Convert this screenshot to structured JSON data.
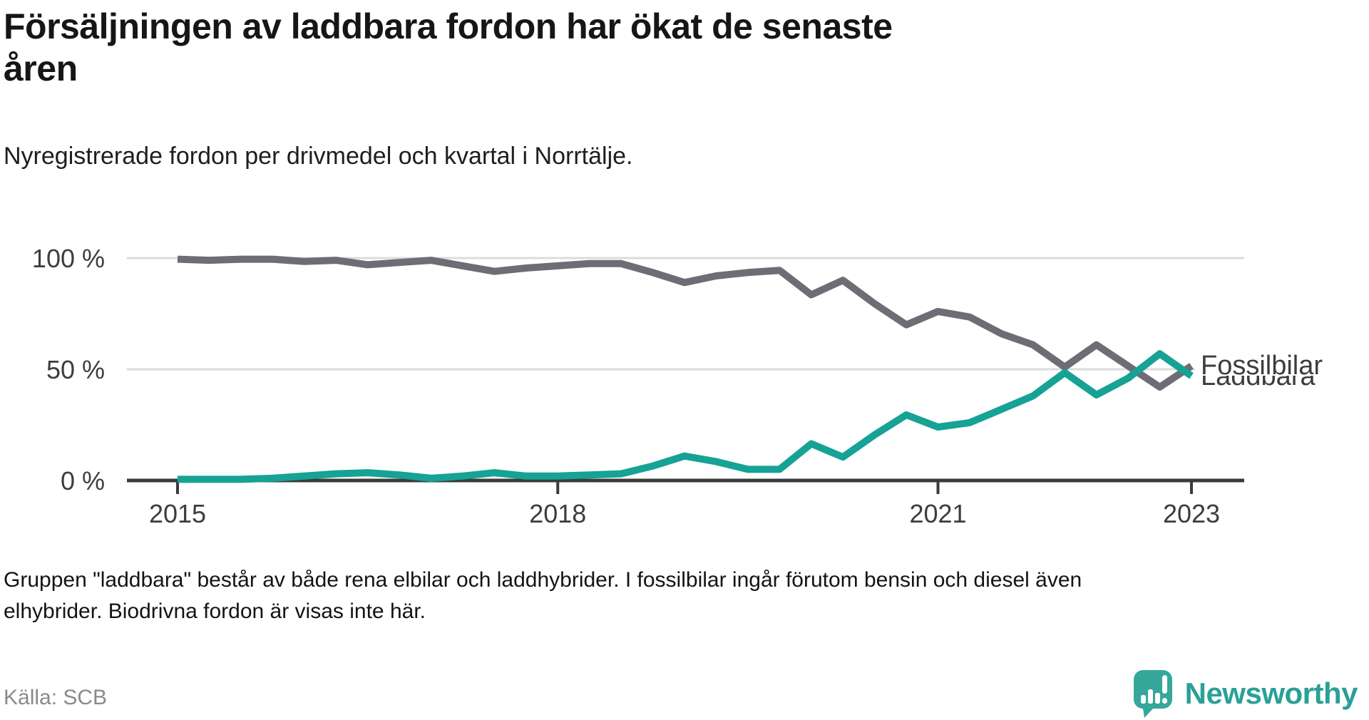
{
  "header": {
    "title_lines": [
      "Försäljningen av laddbara fordon har ökat de senaste",
      "åren"
    ],
    "subtitle": "Nyregistrerade fordon per drivmedel och kvartal i Norrtälje."
  },
  "chart_data": {
    "type": "line",
    "title": "Nyregistrerade fordon per drivmedel och kvartal i Norrtälje",
    "x_unit": "quarter",
    "x": [
      "2015Q1",
      "2015Q2",
      "2015Q3",
      "2015Q4",
      "2016Q1",
      "2016Q2",
      "2016Q3",
      "2016Q4",
      "2017Q1",
      "2017Q2",
      "2017Q3",
      "2017Q4",
      "2018Q1",
      "2018Q2",
      "2018Q3",
      "2018Q4",
      "2019Q1",
      "2019Q2",
      "2019Q3",
      "2019Q4",
      "2020Q1",
      "2020Q2",
      "2020Q3",
      "2020Q4",
      "2021Q1",
      "2021Q2",
      "2021Q3",
      "2021Q4",
      "2022Q1",
      "2022Q2",
      "2022Q3",
      "2022Q4",
      "2023Q1"
    ],
    "series": [
      {
        "name": "Fossilbilar",
        "color": "#6e6c74",
        "label_color": "#76737c",
        "values": [
          99.5,
          99,
          99.5,
          99.5,
          98.5,
          99,
          97,
          98,
          99,
          96.5,
          94,
          95.5,
          96.5,
          97.5,
          97.5,
          93.5,
          89,
          92,
          93.5,
          94.5,
          83.5,
          90,
          79.5,
          70,
          76,
          73.5,
          66,
          61,
          51,
          61,
          51.5,
          42,
          51.5
        ]
      },
      {
        "name": "Laddbara",
        "color": "#16a295",
        "label_color": "#16a295",
        "values": [
          0.5,
          0.5,
          0.5,
          1,
          2,
          3,
          3.5,
          2.5,
          1,
          2,
          3.5,
          2,
          2,
          2.5,
          3,
          6.5,
          11,
          8.5,
          5,
          5,
          16.5,
          10.5,
          20.5,
          29.5,
          24,
          26,
          32,
          38,
          48.5,
          38.5,
          46,
          57,
          47
        ]
      }
    ],
    "ylim": [
      0,
      100
    ],
    "yticks": [
      {
        "value": 100,
        "label": "100 %"
      },
      {
        "value": 50,
        "label": "50 %"
      },
      {
        "value": 0,
        "label": "0 %"
      }
    ],
    "xticks": [
      {
        "index": 0,
        "label": "2015"
      },
      {
        "index": 12,
        "label": "2018"
      },
      {
        "index": 24,
        "label": "2021"
      },
      {
        "index": 32,
        "label": "2023"
      }
    ],
    "grid": "horizontal",
    "legend": "end-of-line-labels"
  },
  "footer": {
    "note_lines": [
      "Gruppen \"laddbara\" består av både rena elbilar och laddhybrider. I fossilbilar ingår förutom bensin och diesel även",
      "elhybrider. Biodrivna fordon är visas inte här."
    ],
    "source": "Källa: SCB",
    "brand": "Newsworthy"
  },
  "colors": {
    "fossil_line": "#6e6c74",
    "laddbara_line": "#16a295",
    "grid": "#dcdcdc",
    "axis": "#3a3a3a",
    "brand_teal": "#2aa096",
    "brand_icon": "#35a79b"
  }
}
